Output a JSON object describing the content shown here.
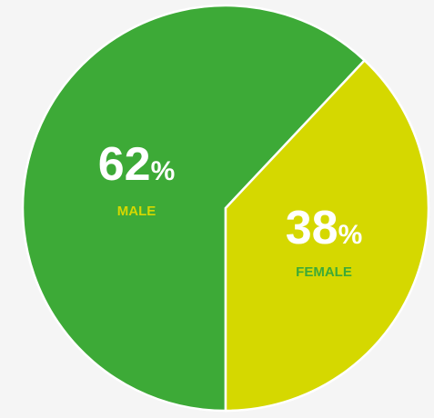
{
  "chart_data": {
    "type": "pie",
    "categories": [
      "MALE",
      "FEMALE"
    ],
    "values": [
      62,
      38
    ],
    "value_labels": [
      "62%",
      "38%"
    ],
    "colors": [
      "#3daa37",
      "#d5d800"
    ]
  }
}
